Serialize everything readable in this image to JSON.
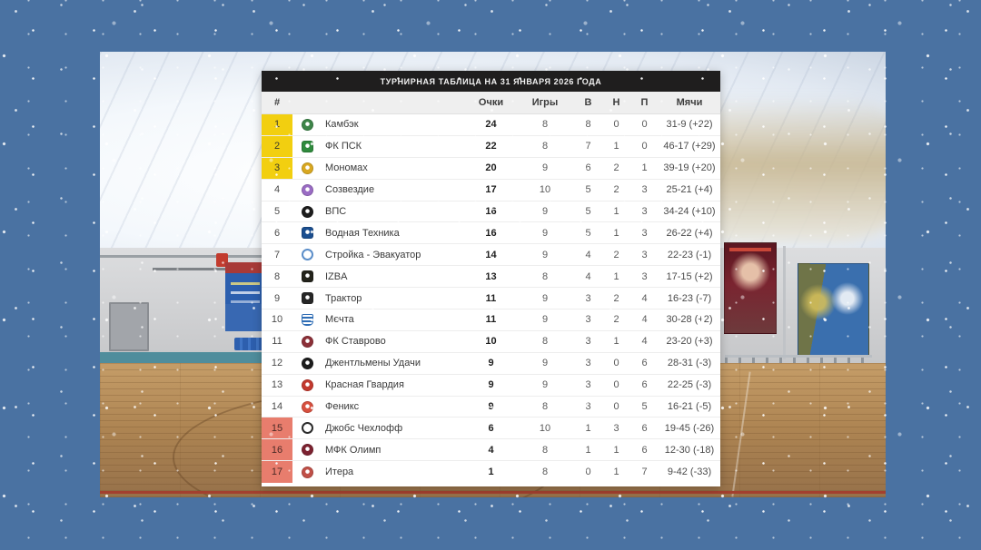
{
  "background": {
    "border_color": "#4a72a2",
    "scene": "indoor-sports-hall-photo"
  },
  "table": {
    "title": "ТУРНИРНАЯ ТАБЛИЦА НА 31 ЯНВАРЯ 2026 ГОДА",
    "columns": {
      "rank": "#",
      "team": "",
      "points": "Очки",
      "games": "Игры",
      "wins": "В",
      "draws": "Н",
      "losses": "П",
      "goals": "Мячи"
    },
    "zone_colors": {
      "promotion": "#f2cf10",
      "relegation": "#e87d6d"
    },
    "rows": [
      {
        "rank": "1",
        "team": "Камбэк",
        "points": "24",
        "games": "8",
        "wins": "8",
        "draws": "0",
        "losses": "0",
        "goals": "31-9 (+22)",
        "zone": "promotion",
        "logo": {
          "color": "#3e8549",
          "shape": "circle"
        }
      },
      {
        "rank": "2",
        "team": "ФК ПСК",
        "points": "22",
        "games": "8",
        "wins": "7",
        "draws": "1",
        "losses": "0",
        "goals": "46-17 (+29)",
        "zone": "promotion",
        "logo": {
          "color": "#2f8a3d",
          "shape": "square"
        }
      },
      {
        "rank": "3",
        "team": "Мономах",
        "points": "20",
        "games": "9",
        "wins": "6",
        "draws": "2",
        "losses": "1",
        "goals": "39-19 (+20)",
        "zone": "promotion",
        "logo": {
          "color": "#d9a821",
          "shape": "circle"
        }
      },
      {
        "rank": "4",
        "team": "Созвездие",
        "points": "17",
        "games": "10",
        "wins": "5",
        "draws": "2",
        "losses": "3",
        "goals": "25-21 (+4)",
        "zone": "",
        "logo": {
          "color": "#9a6cc4",
          "shape": "circle"
        }
      },
      {
        "rank": "5",
        "team": "ВПС",
        "points": "16",
        "games": "9",
        "wins": "5",
        "draws": "1",
        "losses": "3",
        "goals": "34-24 (+10)",
        "zone": "",
        "logo": {
          "color": "#1d1d1d",
          "shape": "circle"
        }
      },
      {
        "rank": "6",
        "team": "Водная Техника",
        "points": "16",
        "games": "9",
        "wins": "5",
        "draws": "1",
        "losses": "3",
        "goals": "26-22 (+4)",
        "zone": "",
        "logo": {
          "color": "#1b4e8f",
          "shape": "square"
        }
      },
      {
        "rank": "7",
        "team": "Стройка - Эвакуатор",
        "points": "14",
        "games": "9",
        "wins": "4",
        "draws": "2",
        "losses": "3",
        "goals": "22-23 (-1)",
        "zone": "",
        "logo": {
          "color": "#5b8ec9",
          "shape": "ring"
        }
      },
      {
        "rank": "8",
        "team": "IZBA",
        "points": "13",
        "games": "8",
        "wins": "4",
        "draws": "1",
        "losses": "3",
        "goals": "17-15 (+2)",
        "zone": "",
        "logo": {
          "color": "#23231b",
          "shape": "square"
        }
      },
      {
        "rank": "9",
        "team": "Трактор",
        "points": "11",
        "games": "9",
        "wins": "3",
        "draws": "2",
        "losses": "4",
        "goals": "16-23 (-7)",
        "zone": "",
        "logo": {
          "color": "#262626",
          "shape": "square"
        }
      },
      {
        "rank": "10",
        "team": "Мечта",
        "points": "11",
        "games": "9",
        "wins": "3",
        "draws": "2",
        "losses": "4",
        "goals": "30-28 (+2)",
        "zone": "",
        "logo": {
          "color": "#2f6db5",
          "shape": "stripes"
        }
      },
      {
        "rank": "11",
        "team": "ФК Ставрово",
        "points": "10",
        "games": "8",
        "wins": "3",
        "draws": "1",
        "losses": "4",
        "goals": "23-20 (+3)",
        "zone": "",
        "logo": {
          "color": "#8c3038",
          "shape": "circle"
        }
      },
      {
        "rank": "12",
        "team": "Джентльмены Удачи",
        "points": "9",
        "games": "9",
        "wins": "3",
        "draws": "0",
        "losses": "6",
        "goals": "28-31 (-3)",
        "zone": "",
        "logo": {
          "color": "#1c1c1c",
          "shape": "circle"
        }
      },
      {
        "rank": "13",
        "team": "Красная Гвардия",
        "points": "9",
        "games": "9",
        "wins": "3",
        "draws": "0",
        "losses": "6",
        "goals": "22-25 (-3)",
        "zone": "",
        "logo": {
          "color": "#c3392e",
          "shape": "circle"
        }
      },
      {
        "rank": "14",
        "team": "Феникс",
        "points": "9",
        "games": "8",
        "wins": "3",
        "draws": "0",
        "losses": "5",
        "goals": "16-21 (-5)",
        "zone": "",
        "logo": {
          "color": "#d8503f",
          "shape": "circle"
        }
      },
      {
        "rank": "15",
        "team": "Джобс Чехлофф",
        "points": "6",
        "games": "10",
        "wins": "1",
        "draws": "3",
        "losses": "6",
        "goals": "19-45 (-26)",
        "zone": "relegation",
        "logo": {
          "color": "#2a2a2a",
          "shape": "ring"
        }
      },
      {
        "rank": "16",
        "team": "МФК Олимп",
        "points": "4",
        "games": "8",
        "wins": "1",
        "draws": "1",
        "losses": "6",
        "goals": "12-30 (-18)",
        "zone": "relegation",
        "logo": {
          "color": "#7c2230",
          "shape": "circle"
        }
      },
      {
        "rank": "17",
        "team": "Итера",
        "points": "1",
        "games": "8",
        "wins": "0",
        "draws": "1",
        "losses": "7",
        "goals": "9-42 (-33)",
        "zone": "relegation",
        "logo": {
          "color": "#c05048",
          "shape": "circle"
        }
      }
    ]
  }
}
